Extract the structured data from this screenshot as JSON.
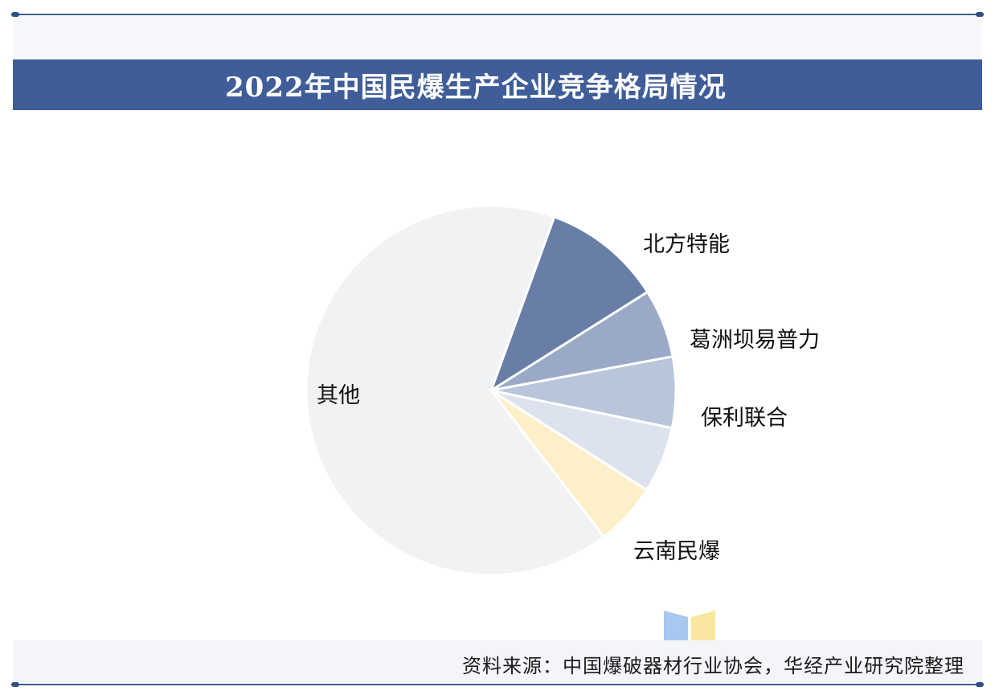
{
  "title": "2022年中国民爆生产企业竞争格局情况",
  "source": "资料来源：中国爆破器材行业协会，华经产业研究院整理",
  "chart_data": {
    "type": "pie",
    "title": "2022年中国民爆生产企业竞争格局情况",
    "start_angle_deg": 20,
    "slices": [
      {
        "name": "北方特能",
        "value": 10.5,
        "color": "#687ea7",
        "label": "北方特能"
      },
      {
        "name": "葛洲坝易普力",
        "value": 6.0,
        "color": "#9aaac6",
        "label": "葛洲坝易普力"
      },
      {
        "name": "保利联合",
        "value": 6.2,
        "color": "#b8c5da",
        "label": "保利联合"
      },
      {
        "name": "",
        "value": 5.8,
        "color": "#dde3ee",
        "label": ""
      },
      {
        "name": "云南民爆",
        "value": 5.5,
        "color": "#fdf0c8",
        "label": "云南民爆"
      },
      {
        "name": "其他",
        "value": 66.0,
        "color": "#f1f2f4",
        "label": "其他"
      }
    ],
    "legend": "none"
  },
  "colors": {
    "title_bar": "#3f5d98",
    "frame": "#3e5b92",
    "logo_blue": "#a9c8ef",
    "logo_yellow": "#f9e79f"
  }
}
